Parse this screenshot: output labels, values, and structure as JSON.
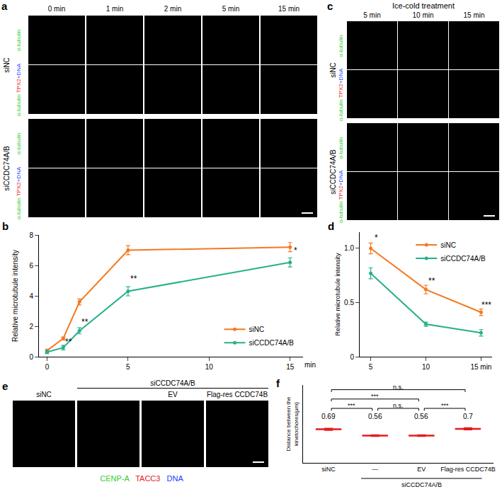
{
  "image_panels": {
    "a": {
      "label": "a",
      "columns": [
        "0 min",
        "1 min",
        "2 min",
        "5 min",
        "15 min"
      ],
      "conditions": [
        "siNC",
        "siCCDC74A/B"
      ],
      "channels": [
        [
          {
            "text": "α-tubulin",
            "color": "#33cc33"
          }
        ],
        [
          {
            "text": "α-tubulin ",
            "color": "#33cc33"
          },
          {
            "text": "TPX2",
            "color": "#e41a1c"
          },
          {
            "text": "+DNA",
            "color": "#2040ff"
          }
        ]
      ]
    },
    "c": {
      "label": "c",
      "title": "Ice-cold treatment",
      "columns": [
        "5 min",
        "10 min",
        "15 min"
      ],
      "conditions": [
        "siNC",
        "siCCDC74A/B"
      ],
      "channels": [
        [
          {
            "text": "α-tubulin",
            "color": "#33cc33"
          }
        ],
        [
          {
            "text": "α-tubulin ",
            "color": "#33cc33"
          },
          {
            "text": "TPX2",
            "color": "#e41a1c"
          },
          {
            "text": "+DNA",
            "color": "#2040ff"
          }
        ]
      ]
    },
    "e": {
      "label": "e",
      "columns": [
        "siNC",
        null,
        "EV",
        "Flag-res CCDC74B"
      ],
      "groups": [
        {
          "text": "siCCDC74A/B",
          "from": 1,
          "to": 3
        }
      ],
      "legend": [
        {
          "text": "CENP-A",
          "color": "#33cc33"
        },
        {
          "text": "TACC3",
          "color": "#e41a1c"
        },
        {
          "text": "DNA",
          "color": "#2040ff"
        }
      ]
    }
  },
  "chart_data": [
    {
      "panel": "b",
      "type": "line",
      "marker": "circle",
      "line_style": "solid",
      "grid": false,
      "legend": "lower right",
      "x": [
        0,
        1,
        2,
        5,
        15
      ],
      "xlim": [
        -0.5,
        15.8
      ],
      "xticks": [
        0,
        5,
        10,
        15
      ],
      "xlabel": "min",
      "ylabel": "Relative microtubule intensity",
      "ylim": [
        0,
        8
      ],
      "yticks": [
        0,
        2,
        4,
        6,
        8
      ],
      "series": [
        {
          "name": "siNC",
          "color": "#f47920",
          "values": [
            0.4,
            1.2,
            3.6,
            7.0,
            7.2
          ],
          "error": [
            0.1,
            0.1,
            0.2,
            0.3,
            0.3
          ]
        },
        {
          "name": "siCCDC74A/B",
          "color": "#26b08a",
          "values": [
            0.3,
            0.6,
            1.7,
            4.3,
            6.2
          ],
          "error": [
            0.1,
            0.15,
            0.2,
            0.3,
            0.3
          ]
        }
      ],
      "annotations": [
        {
          "x": 1,
          "y": 1.0,
          "text": "**"
        },
        {
          "x": 2,
          "y": 2.3,
          "text": "**"
        },
        {
          "x": 5,
          "y": 5.1,
          "text": "**"
        },
        {
          "x": 15,
          "y": 7.0,
          "text": "*"
        }
      ]
    },
    {
      "panel": "d",
      "type": "line",
      "marker": "circle",
      "line_style": "solid",
      "grid": false,
      "legend": "upper right",
      "x": [
        5,
        10,
        15
      ],
      "xlim": [
        4,
        16
      ],
      "xticks": [
        5,
        10,
        {
          "value": 15,
          "label": "15 min"
        }
      ],
      "ylabel": "Relative microtubule intensity",
      "ylim": [
        0,
        1.15
      ],
      "yticks": [
        0,
        0.5,
        {
          "value": 1,
          "label": "1.0"
        }
      ],
      "series": [
        {
          "name": "siNC",
          "color": "#f47920",
          "values": [
            1.0,
            0.62,
            0.41
          ],
          "error": [
            0.05,
            0.04,
            0.03
          ]
        },
        {
          "name": "siCCDC74A/B",
          "color": "#26b08a",
          "values": [
            0.77,
            0.3,
            0.22
          ],
          "error": [
            0.05,
            0.02,
            0.03
          ]
        }
      ],
      "annotations": [
        {
          "x": 5,
          "y": 1.1,
          "text": "*"
        },
        {
          "x": 10,
          "y": 0.7,
          "text": "**"
        },
        {
          "x": 15,
          "y": 0.48,
          "text": "***"
        }
      ]
    },
    {
      "panel": "f",
      "type": "dot",
      "marker": "line",
      "color": "#e31a1c",
      "grid": false,
      "tick_labels": "x",
      "data_labels": true,
      "categories": [
        "siNC",
        "—",
        "EV",
        "Flag-res CCDC74B"
      ],
      "groups": [
        {
          "text": "siCCDC74A/B",
          "from": 1,
          "to": 3
        }
      ],
      "ylabel": "Distance between the kinetochores(μm)",
      "ylim": [
        0,
        1.6
      ],
      "values": [
        0.69,
        0.56,
        0.56,
        0.7
      ],
      "error": [
        0.02,
        0.015,
        0.015,
        0.02
      ],
      "comparisons": [
        {
          "from": 0,
          "to": 1,
          "text": "***"
        },
        {
          "from": 1,
          "to": 2,
          "text": "n.s."
        },
        {
          "from": 2,
          "to": 3,
          "text": "***"
        },
        {
          "from": 0,
          "to": 2,
          "text": "***"
        },
        {
          "from": 0,
          "to": 3,
          "text": "n.s."
        }
      ]
    }
  ]
}
